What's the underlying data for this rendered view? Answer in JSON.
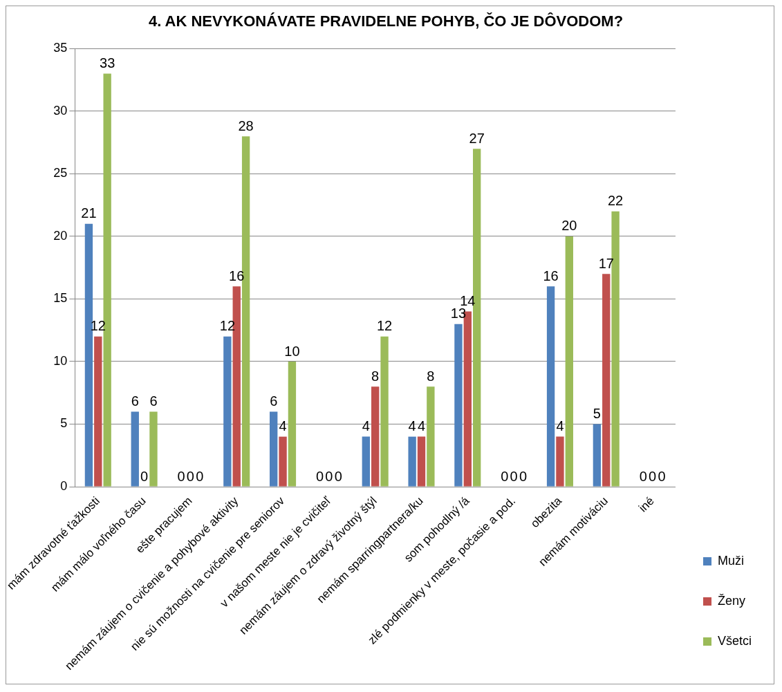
{
  "chart_data": {
    "type": "bar",
    "title": "4. AK NEVYKONÁVATE PRAVIDELNE POHYB, ČO JE DÔVODOM?",
    "categories": [
      "mám zdravotné ťažkosti",
      "mám málo voľného času",
      "ešte pracujem",
      "nemám záujem o cvičenie a pohybové aktivity",
      "nie sú možnosti na cvičenie pre seniorov",
      "v našom meste nie je cvičiteľ",
      "nemám záujem o zdravý životný štýl",
      "nemám sparringpartnera/ku",
      "som pohodlný /á",
      "zlé podmienky v meste, počasie a pod.",
      "obezita",
      "nemám motiváciu",
      "iné"
    ],
    "series": [
      {
        "name": "Muži",
        "color": "#4f81bd",
        "values": [
          21,
          6,
          0,
          12,
          6,
          0,
          4,
          4,
          13,
          0,
          16,
          5,
          0
        ]
      },
      {
        "name": "Ženy",
        "color": "#c0504d",
        "values": [
          12,
          0,
          0,
          16,
          4,
          0,
          8,
          4,
          14,
          0,
          4,
          17,
          0
        ]
      },
      {
        "name": "Všetci",
        "color": "#9bbb59",
        "values": [
          33,
          6,
          0,
          28,
          10,
          0,
          12,
          8,
          27,
          0,
          20,
          22,
          0
        ]
      }
    ],
    "ylim": [
      0,
      35
    ],
    "yticks": [
      0,
      5,
      10,
      15,
      20,
      25,
      30,
      35
    ],
    "grid": "y",
    "legend": "right",
    "data_labels": true
  }
}
